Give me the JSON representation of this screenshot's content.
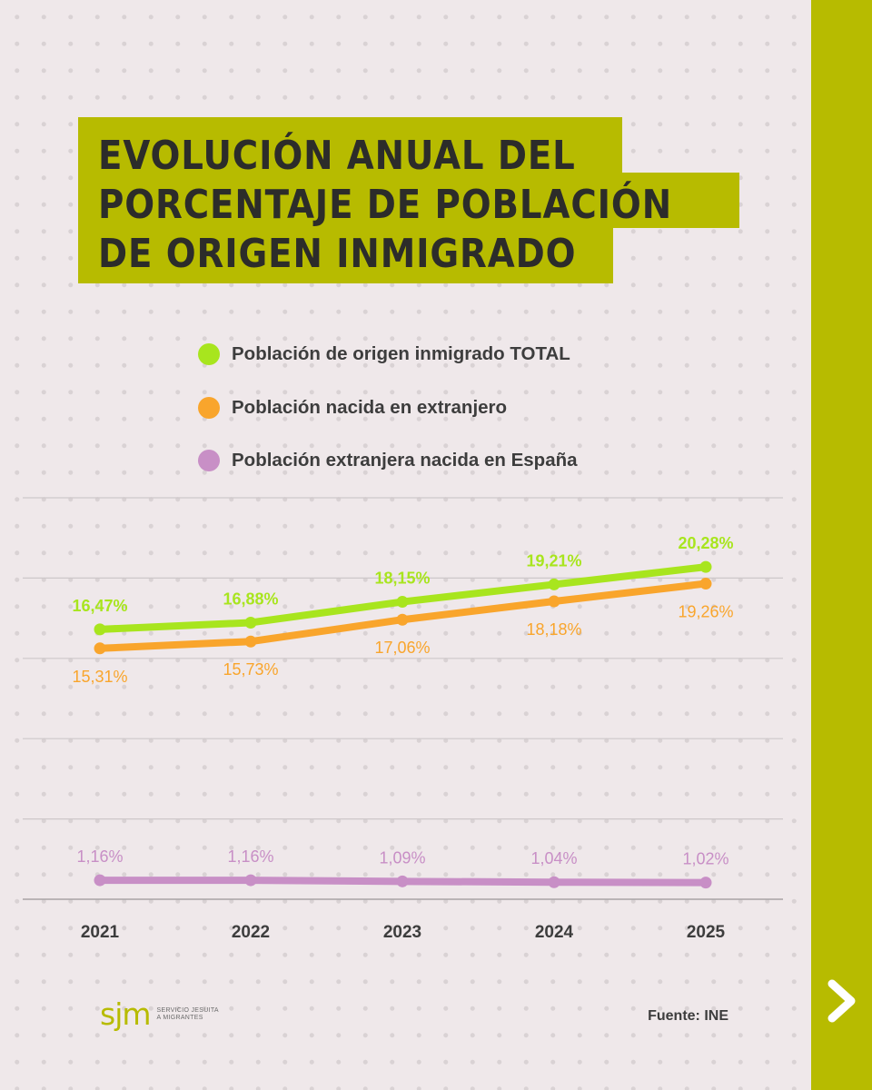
{
  "title_lines": [
    "EVOLUCIÓN ANUAL DEL",
    "PORCENTAJE DE POBLACIÓN",
    "DE ORIGEN INMIGRADO"
  ],
  "logo": {
    "mark": "sjm",
    "text_line1": "Servicio Jesuita",
    "text_line2": "a Migrantes"
  },
  "source": "Fuente: INE",
  "next_icon": "chevron-right-icon",
  "colors": {
    "accent": "#b7bb00",
    "total": "#a8e51e",
    "born_abroad": "#f9a52c",
    "foreign_born_spain": "#c88fc6",
    "title_text": "#2c2c2a"
  },
  "chart_data": {
    "type": "line",
    "x": [
      "2021",
      "2022",
      "2023",
      "2024",
      "2025"
    ],
    "series": [
      {
        "name": "Población de origen inmigrado TOTAL",
        "values": [
          16.47,
          16.88,
          18.15,
          19.21,
          20.28
        ],
        "labels": [
          "16,47%",
          "16,88%",
          "18,15%",
          "19,21%",
          "20,28%"
        ],
        "color": "#a8e51e",
        "label_position": "above"
      },
      {
        "name": "Población nacida en extranjero",
        "values": [
          15.31,
          15.73,
          17.06,
          18.18,
          19.26
        ],
        "labels": [
          "15,31%",
          "15,73%",
          "17,06%",
          "18,18%",
          "19,26%"
        ],
        "color": "#f9a52c",
        "label_position": "below"
      },
      {
        "name": "Población extranjera nacida en España",
        "values": [
          1.16,
          1.16,
          1.09,
          1.04,
          1.02
        ],
        "labels": [
          "1,16%",
          "1,16%",
          "1,09%",
          "1,04%",
          "1,02%"
        ],
        "color": "#c88fc6",
        "label_position": "above"
      }
    ],
    "ylim": [
      0,
      24.5
    ],
    "grid": true,
    "legend_position": "top"
  }
}
